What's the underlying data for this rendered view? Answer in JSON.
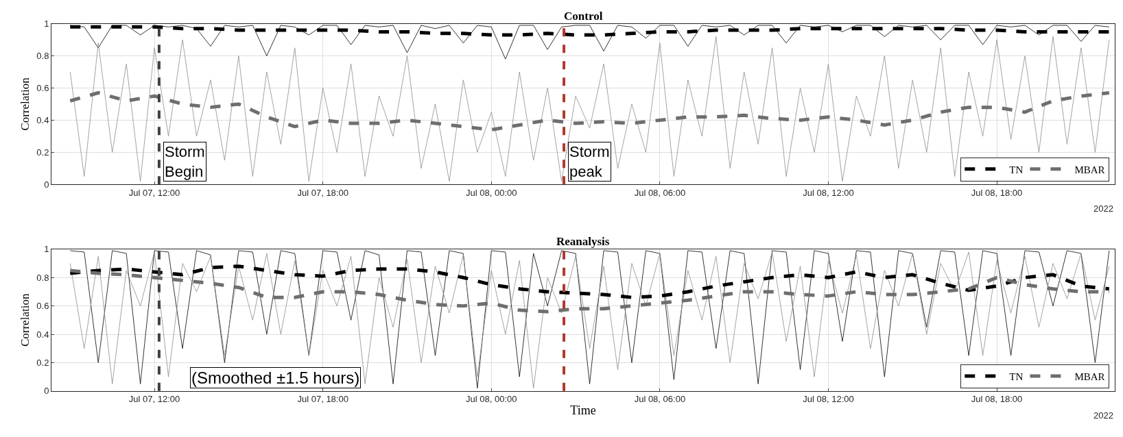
{
  "chart_data": [
    {
      "type": "line",
      "title": "Control",
      "ylabel": "Correlation",
      "annotations": [
        "2022"
      ],
      "x": [
        "2022-07-07T09:00",
        "2022-07-07T09:30",
        "2022-07-07T10:00",
        "2022-07-07T10:30",
        "2022-07-07T11:00",
        "2022-07-07T11:30",
        "2022-07-07T12:00",
        "2022-07-07T12:30",
        "2022-07-07T13:00",
        "2022-07-07T13:30",
        "2022-07-07T14:00",
        "2022-07-07T14:30",
        "2022-07-07T15:00",
        "2022-07-07T15:30",
        "2022-07-07T16:00",
        "2022-07-07T16:30",
        "2022-07-07T17:00",
        "2022-07-07T17:30",
        "2022-07-07T18:00",
        "2022-07-07T18:30",
        "2022-07-07T19:00",
        "2022-07-07T19:30",
        "2022-07-07T20:00",
        "2022-07-07T20:30",
        "2022-07-07T21:00",
        "2022-07-07T21:30",
        "2022-07-07T22:00",
        "2022-07-07T22:30",
        "2022-07-07T23:00",
        "2022-07-07T23:30",
        "2022-07-08T00:00",
        "2022-07-08T00:30",
        "2022-07-08T01:00",
        "2022-07-08T01:30",
        "2022-07-08T02:00",
        "2022-07-08T02:30",
        "2022-07-08T03:00",
        "2022-07-08T03:30",
        "2022-07-08T04:00",
        "2022-07-08T04:30",
        "2022-07-08T05:00",
        "2022-07-08T05:30",
        "2022-07-08T06:00",
        "2022-07-08T06:30",
        "2022-07-08T07:00",
        "2022-07-08T07:30",
        "2022-07-08T08:00",
        "2022-07-08T08:30",
        "2022-07-08T09:00",
        "2022-07-08T09:30",
        "2022-07-08T10:00",
        "2022-07-08T10:30",
        "2022-07-08T11:00",
        "2022-07-08T11:30",
        "2022-07-08T12:00",
        "2022-07-08T12:30",
        "2022-07-08T13:00",
        "2022-07-08T13:30",
        "2022-07-08T14:00",
        "2022-07-08T14:30",
        "2022-07-08T15:00",
        "2022-07-08T15:30",
        "2022-07-08T16:00",
        "2022-07-08T16:30",
        "2022-07-08T17:00",
        "2022-07-08T17:30",
        "2022-07-08T18:00",
        "2022-07-08T18:30",
        "2022-07-08T19:00",
        "2022-07-08T19:30",
        "2022-07-08T20:00",
        "2022-07-08T20:30",
        "2022-07-08T21:00",
        "2022-07-08T21:30",
        "2022-07-08T22:00"
      ],
      "series": [
        {
          "color": "#000000",
          "line_style": "solid",
          "values": [
            0.99,
            0.98,
            0.85,
            0.99,
            0.99,
            0.93,
            0.99,
            0.98,
            0.99,
            0.97,
            0.86,
            0.99,
            0.98,
            0.99,
            0.8,
            0.99,
            0.98,
            0.93,
            0.99,
            0.99,
            0.87,
            0.99,
            0.98,
            0.99,
            0.82,
            0.99,
            0.97,
            0.99,
            0.88,
            0.99,
            0.98,
            0.78,
            0.99,
            0.99,
            0.84,
            0.98,
            0.99,
            0.99,
            0.83,
            0.99,
            0.98,
            0.91,
            0.99,
            0.99,
            0.86,
            0.99,
            0.98,
            0.99,
            0.93,
            0.99,
            0.99,
            0.88,
            0.99,
            0.98,
            0.99,
            0.95,
            0.99,
            0.99,
            0.92,
            0.99,
            0.98,
            0.99,
            0.9,
            0.99,
            0.99,
            0.87,
            0.99,
            0.98,
            0.99,
            0.93,
            0.99,
            0.99,
            0.89,
            0.99,
            0.98
          ]
        },
        {
          "color": "#8c8c8c",
          "line_style": "solid",
          "values": [
            0.7,
            0.05,
            0.88,
            0.2,
            0.75,
            0.02,
            0.85,
            0.3,
            0.9,
            0.3,
            0.65,
            0.15,
            0.8,
            0.05,
            0.7,
            0.25,
            0.85,
            0.02,
            0.6,
            0.2,
            0.75,
            0.05,
            0.55,
            0.3,
            0.8,
            0.1,
            0.5,
            0.02,
            0.65,
            0.2,
            0.45,
            0.05,
            0.7,
            0.15,
            0.6,
            0.02,
            0.55,
            0.35,
            0.75,
            0.1,
            0.5,
            0.2,
            0.88,
            0.05,
            0.65,
            0.3,
            0.92,
            0.1,
            0.7,
            0.25,
            0.85,
            0.05,
            0.6,
            0.2,
            0.75,
            0.02,
            0.55,
            0.3,
            0.8,
            0.1,
            0.65,
            0.2,
            0.85,
            0.05,
            0.7,
            0.3,
            0.9,
            0.28,
            0.8,
            0.2,
            0.92,
            0.25,
            0.85,
            0.2,
            0.9
          ]
        },
        {
          "name": "TN",
          "color": "#000000",
          "line_style": "dashed",
          "x": [
            "2022-07-07T09:00",
            "2022-07-07T10:00",
            "2022-07-07T11:00",
            "2022-07-07T12:00",
            "2022-07-07T13:00",
            "2022-07-07T14:00",
            "2022-07-07T15:00",
            "2022-07-07T16:00",
            "2022-07-07T17:00",
            "2022-07-07T18:00",
            "2022-07-07T19:00",
            "2022-07-07T20:00",
            "2022-07-07T21:00",
            "2022-07-07T22:00",
            "2022-07-07T23:00",
            "2022-07-08T00:00",
            "2022-07-08T01:00",
            "2022-07-08T02:00",
            "2022-07-08T03:00",
            "2022-07-08T04:00",
            "2022-07-08T05:00",
            "2022-07-08T06:00",
            "2022-07-08T07:00",
            "2022-07-08T08:00",
            "2022-07-08T09:00",
            "2022-07-08T10:00",
            "2022-07-08T11:00",
            "2022-07-08T12:00",
            "2022-07-08T13:00",
            "2022-07-08T14:00",
            "2022-07-08T15:00",
            "2022-07-08T16:00",
            "2022-07-08T17:00",
            "2022-07-08T18:00",
            "2022-07-08T19:00",
            "2022-07-08T20:00",
            "2022-07-08T21:00",
            "2022-07-08T22:00"
          ],
          "values": [
            0.98,
            0.98,
            0.98,
            0.98,
            0.97,
            0.97,
            0.96,
            0.96,
            0.96,
            0.96,
            0.96,
            0.95,
            0.95,
            0.94,
            0.94,
            0.93,
            0.93,
            0.94,
            0.93,
            0.93,
            0.94,
            0.95,
            0.95,
            0.96,
            0.96,
            0.96,
            0.97,
            0.97,
            0.97,
            0.97,
            0.97,
            0.97,
            0.96,
            0.96,
            0.95,
            0.95,
            0.95,
            0.95
          ]
        },
        {
          "name": "MBAR",
          "color": "#6e6e6e",
          "line_style": "dashed",
          "x": [
            "2022-07-07T09:00",
            "2022-07-07T10:00",
            "2022-07-07T11:00",
            "2022-07-07T12:00",
            "2022-07-07T13:00",
            "2022-07-07T14:00",
            "2022-07-07T15:00",
            "2022-07-07T16:00",
            "2022-07-07T17:00",
            "2022-07-07T18:00",
            "2022-07-07T19:00",
            "2022-07-07T20:00",
            "2022-07-07T21:00",
            "2022-07-07T22:00",
            "2022-07-07T23:00",
            "2022-07-08T00:00",
            "2022-07-08T01:00",
            "2022-07-08T02:00",
            "2022-07-08T03:00",
            "2022-07-08T04:00",
            "2022-07-08T05:00",
            "2022-07-08T06:00",
            "2022-07-08T07:00",
            "2022-07-08T08:00",
            "2022-07-08T09:00",
            "2022-07-08T10:00",
            "2022-07-08T11:00",
            "2022-07-08T12:00",
            "2022-07-08T13:00",
            "2022-07-08T14:00",
            "2022-07-08T15:00",
            "2022-07-08T16:00",
            "2022-07-08T17:00",
            "2022-07-08T18:00",
            "2022-07-08T19:00",
            "2022-07-08T20:00",
            "2022-07-08T21:00",
            "2022-07-08T22:00"
          ],
          "values": [
            0.52,
            0.57,
            0.52,
            0.55,
            0.5,
            0.48,
            0.5,
            0.42,
            0.36,
            0.4,
            0.38,
            0.38,
            0.4,
            0.38,
            0.36,
            0.34,
            0.37,
            0.4,
            0.38,
            0.39,
            0.38,
            0.4,
            0.42,
            0.42,
            0.43,
            0.41,
            0.4,
            0.42,
            0.4,
            0.37,
            0.4,
            0.45,
            0.48,
            0.48,
            0.45,
            0.52,
            0.55,
            0.57
          ]
        }
      ],
      "xlim": [
        "2022-07-07T08:20",
        "2022-07-08T22:12"
      ],
      "xticks": [
        {
          "value": "2022-07-07T12:00",
          "label": "Jul 07, 12:00"
        },
        {
          "value": "2022-07-07T18:00",
          "label": "Jul 07, 18:00"
        },
        {
          "value": "2022-07-08T00:00",
          "label": "Jul 08, 00:00"
        },
        {
          "value": "2022-07-08T06:00",
          "label": "Jul 08, 06:00"
        },
        {
          "value": "2022-07-08T12:00",
          "label": "Jul 08, 12:00"
        },
        {
          "value": "2022-07-08T18:00",
          "label": "Jul 08, 18:00"
        }
      ],
      "ylim": [
        0,
        1
      ],
      "yticks": [
        0,
        0.2,
        0.4,
        0.6,
        0.8,
        1
      ],
      "ref_lines": [
        {
          "axis": "x",
          "value": "2022-07-07T12:10",
          "label": "Storm Begin",
          "color": "#404040",
          "line_style": "dashed"
        },
        {
          "axis": "x",
          "value": "2022-07-08T02:35",
          "label": "Storm peak",
          "color": "#b03a2e",
          "line_style": "dashed"
        }
      ],
      "grid": true,
      "legend": "bottom right"
    },
    {
      "type": "line",
      "title": "Reanalysis",
      "ylabel": "Correlation",
      "xlabel": "Time",
      "annotations": [
        "(Smoothed ±1.5 hours)",
        "2022"
      ],
      "x": [
        "2022-07-07T09:00",
        "2022-07-07T09:30",
        "2022-07-07T10:00",
        "2022-07-07T10:30",
        "2022-07-07T11:00",
        "2022-07-07T11:30",
        "2022-07-07T12:00",
        "2022-07-07T12:30",
        "2022-07-07T13:00",
        "2022-07-07T13:30",
        "2022-07-07T14:00",
        "2022-07-07T14:30",
        "2022-07-07T15:00",
        "2022-07-07T15:30",
        "2022-07-07T16:00",
        "2022-07-07T16:30",
        "2022-07-07T17:00",
        "2022-07-07T17:30",
        "2022-07-07T18:00",
        "2022-07-07T18:30",
        "2022-07-07T19:00",
        "2022-07-07T19:30",
        "2022-07-07T20:00",
        "2022-07-07T20:30",
        "2022-07-07T21:00",
        "2022-07-07T21:30",
        "2022-07-07T22:00",
        "2022-07-07T22:30",
        "2022-07-07T23:00",
        "2022-07-07T23:30",
        "2022-07-08T00:00",
        "2022-07-08T00:30",
        "2022-07-08T01:00",
        "2022-07-08T01:30",
        "2022-07-08T02:00",
        "2022-07-08T02:30",
        "2022-07-08T03:00",
        "2022-07-08T03:30",
        "2022-07-08T04:00",
        "2022-07-08T04:30",
        "2022-07-08T05:00",
        "2022-07-08T05:30",
        "2022-07-08T06:00",
        "2022-07-08T06:30",
        "2022-07-08T07:00",
        "2022-07-08T07:30",
        "2022-07-08T08:00",
        "2022-07-08T08:30",
        "2022-07-08T09:00",
        "2022-07-08T09:30",
        "2022-07-08T10:00",
        "2022-07-08T10:30",
        "2022-07-08T11:00",
        "2022-07-08T11:30",
        "2022-07-08T12:00",
        "2022-07-08T12:30",
        "2022-07-08T13:00",
        "2022-07-08T13:30",
        "2022-07-08T14:00",
        "2022-07-08T14:30",
        "2022-07-08T15:00",
        "2022-07-08T15:30",
        "2022-07-08T16:00",
        "2022-07-08T16:30",
        "2022-07-08T17:00",
        "2022-07-08T17:30",
        "2022-07-08T18:00",
        "2022-07-08T18:30",
        "2022-07-08T19:00",
        "2022-07-08T19:30",
        "2022-07-08T20:00",
        "2022-07-08T20:30",
        "2022-07-08T21:00",
        "2022-07-08T21:30",
        "2022-07-08T22:00"
      ],
      "series": [
        {
          "color": "#000000",
          "line_style": "solid",
          "values": [
            0.99,
            0.98,
            0.2,
            0.99,
            0.97,
            0.05,
            0.99,
            0.98,
            0.3,
            0.99,
            0.96,
            0.2,
            0.99,
            0.98,
            0.4,
            0.99,
            0.97,
            0.25,
            0.99,
            0.98,
            0.5,
            0.99,
            0.96,
            0.05,
            0.99,
            0.98,
            0.25,
            0.99,
            0.97,
            0.02,
            0.99,
            0.98,
            0.1,
            0.97,
            0.6,
            0.99,
            0.97,
            0.05,
            0.99,
            0.98,
            0.2,
            0.99,
            0.97,
            0.08,
            0.99,
            0.98,
            0.3,
            0.99,
            0.97,
            0.05,
            0.99,
            0.98,
            0.15,
            0.99,
            0.97,
            0.35,
            0.99,
            0.98,
            0.1,
            0.99,
            0.97,
            0.45,
            0.99,
            0.98,
            0.25,
            0.99,
            0.97,
            0.25,
            0.99,
            0.98,
            0.6,
            0.99,
            0.97,
            0.2,
            0.99
          ]
        },
        {
          "color": "#8c8c8c",
          "line_style": "solid",
          "values": [
            0.9,
            0.3,
            0.95,
            0.05,
            0.85,
            0.6,
            0.98,
            0.1,
            0.9,
            0.7,
            0.95,
            0.25,
            0.88,
            0.5,
            0.97,
            0.4,
            0.92,
            0.25,
            0.85,
            0.6,
            0.95,
            0.05,
            0.8,
            0.45,
            0.93,
            0.2,
            0.88,
            0.55,
            0.96,
            0.1,
            0.85,
            0.4,
            0.92,
            0.02,
            0.8,
            0.55,
            0.95,
            0.3,
            0.88,
            0.15,
            0.9,
            0.6,
            0.97,
            0.25,
            0.85,
            0.5,
            0.95,
            0.2,
            0.9,
            0.65,
            0.98,
            0.35,
            0.88,
            0.1,
            0.92,
            0.55,
            0.96,
            0.3,
            0.85,
            0.6,
            0.97,
            0.4,
            0.9,
            0.7,
            0.98,
            0.25,
            0.92,
            0.55,
            0.95,
            0.45,
            0.9,
            0.65,
            0.97,
            0.5,
            0.88
          ]
        },
        {
          "name": "TN",
          "color": "#000000",
          "line_style": "dashed",
          "x": [
            "2022-07-07T09:00",
            "2022-07-07T10:00",
            "2022-07-07T11:00",
            "2022-07-07T12:00",
            "2022-07-07T13:00",
            "2022-07-07T14:00",
            "2022-07-07T15:00",
            "2022-07-07T16:00",
            "2022-07-07T17:00",
            "2022-07-07T18:00",
            "2022-07-07T19:00",
            "2022-07-07T20:00",
            "2022-07-07T21:00",
            "2022-07-07T22:00",
            "2022-07-07T23:00",
            "2022-07-08T00:00",
            "2022-07-08T01:00",
            "2022-07-08T02:00",
            "2022-07-08T03:00",
            "2022-07-08T04:00",
            "2022-07-08T05:00",
            "2022-07-08T06:00",
            "2022-07-08T07:00",
            "2022-07-08T08:00",
            "2022-07-08T09:00",
            "2022-07-08T10:00",
            "2022-07-08T11:00",
            "2022-07-08T12:00",
            "2022-07-08T13:00",
            "2022-07-08T14:00",
            "2022-07-08T15:00",
            "2022-07-08T16:00",
            "2022-07-08T17:00",
            "2022-07-08T18:00",
            "2022-07-08T19:00",
            "2022-07-08T20:00",
            "2022-07-08T21:00",
            "2022-07-08T22:00"
          ],
          "values": [
            0.83,
            0.85,
            0.86,
            0.84,
            0.82,
            0.87,
            0.88,
            0.85,
            0.82,
            0.81,
            0.85,
            0.86,
            0.86,
            0.84,
            0.8,
            0.75,
            0.72,
            0.7,
            0.69,
            0.68,
            0.66,
            0.67,
            0.7,
            0.74,
            0.77,
            0.8,
            0.82,
            0.8,
            0.84,
            0.8,
            0.82,
            0.76,
            0.71,
            0.74,
            0.8,
            0.82,
            0.74,
            0.72
          ]
        },
        {
          "name": "MBAR",
          "color": "#6e6e6e",
          "line_style": "dashed",
          "x": [
            "2022-07-07T09:00",
            "2022-07-07T10:00",
            "2022-07-07T11:00",
            "2022-07-07T12:00",
            "2022-07-07T13:00",
            "2022-07-07T14:00",
            "2022-07-07T15:00",
            "2022-07-07T16:00",
            "2022-07-07T17:00",
            "2022-07-07T18:00",
            "2022-07-07T19:00",
            "2022-07-07T20:00",
            "2022-07-07T21:00",
            "2022-07-07T22:00",
            "2022-07-07T23:00",
            "2022-07-08T00:00",
            "2022-07-08T01:00",
            "2022-07-08T02:00",
            "2022-07-08T03:00",
            "2022-07-08T04:00",
            "2022-07-08T05:00",
            "2022-07-08T06:00",
            "2022-07-08T07:00",
            "2022-07-08T08:00",
            "2022-07-08T09:00",
            "2022-07-08T10:00",
            "2022-07-08T11:00",
            "2022-07-08T12:00",
            "2022-07-08T13:00",
            "2022-07-08T14:00",
            "2022-07-08T15:00",
            "2022-07-08T16:00",
            "2022-07-08T17:00",
            "2022-07-08T18:00",
            "2022-07-08T19:00",
            "2022-07-08T20:00",
            "2022-07-08T21:00",
            "2022-07-08T22:00"
          ],
          "values": [
            0.85,
            0.83,
            0.82,
            0.8,
            0.78,
            0.76,
            0.73,
            0.66,
            0.66,
            0.7,
            0.7,
            0.68,
            0.64,
            0.61,
            0.6,
            0.62,
            0.57,
            0.56,
            0.58,
            0.58,
            0.6,
            0.62,
            0.64,
            0.67,
            0.7,
            0.7,
            0.68,
            0.67,
            0.7,
            0.68,
            0.68,
            0.7,
            0.72,
            0.8,
            0.75,
            0.72,
            0.7,
            0.7
          ]
        }
      ],
      "xlim": [
        "2022-07-07T08:20",
        "2022-07-08T22:12"
      ],
      "xticks": [
        {
          "value": "2022-07-07T12:00",
          "label": "Jul 07, 12:00"
        },
        {
          "value": "2022-07-07T18:00",
          "label": "Jul 07, 18:00"
        },
        {
          "value": "2022-07-08T00:00",
          "label": "Jul 08, 00:00"
        },
        {
          "value": "2022-07-08T06:00",
          "label": "Jul 08, 06:00"
        },
        {
          "value": "2022-07-08T12:00",
          "label": "Jul 08, 12:00"
        },
        {
          "value": "2022-07-08T18:00",
          "label": "Jul 08, 18:00"
        }
      ],
      "ylim": [
        0,
        1
      ],
      "yticks": [
        0,
        0.2,
        0.4,
        0.6,
        0.8,
        1
      ],
      "ref_lines": [
        {
          "axis": "x",
          "value": "2022-07-07T12:10",
          "color": "#404040",
          "line_style": "dashed"
        },
        {
          "axis": "x",
          "value": "2022-07-08T02:35",
          "color": "#b03a2e",
          "line_style": "dashed"
        }
      ],
      "grid": true,
      "legend": "bottom right"
    }
  ]
}
